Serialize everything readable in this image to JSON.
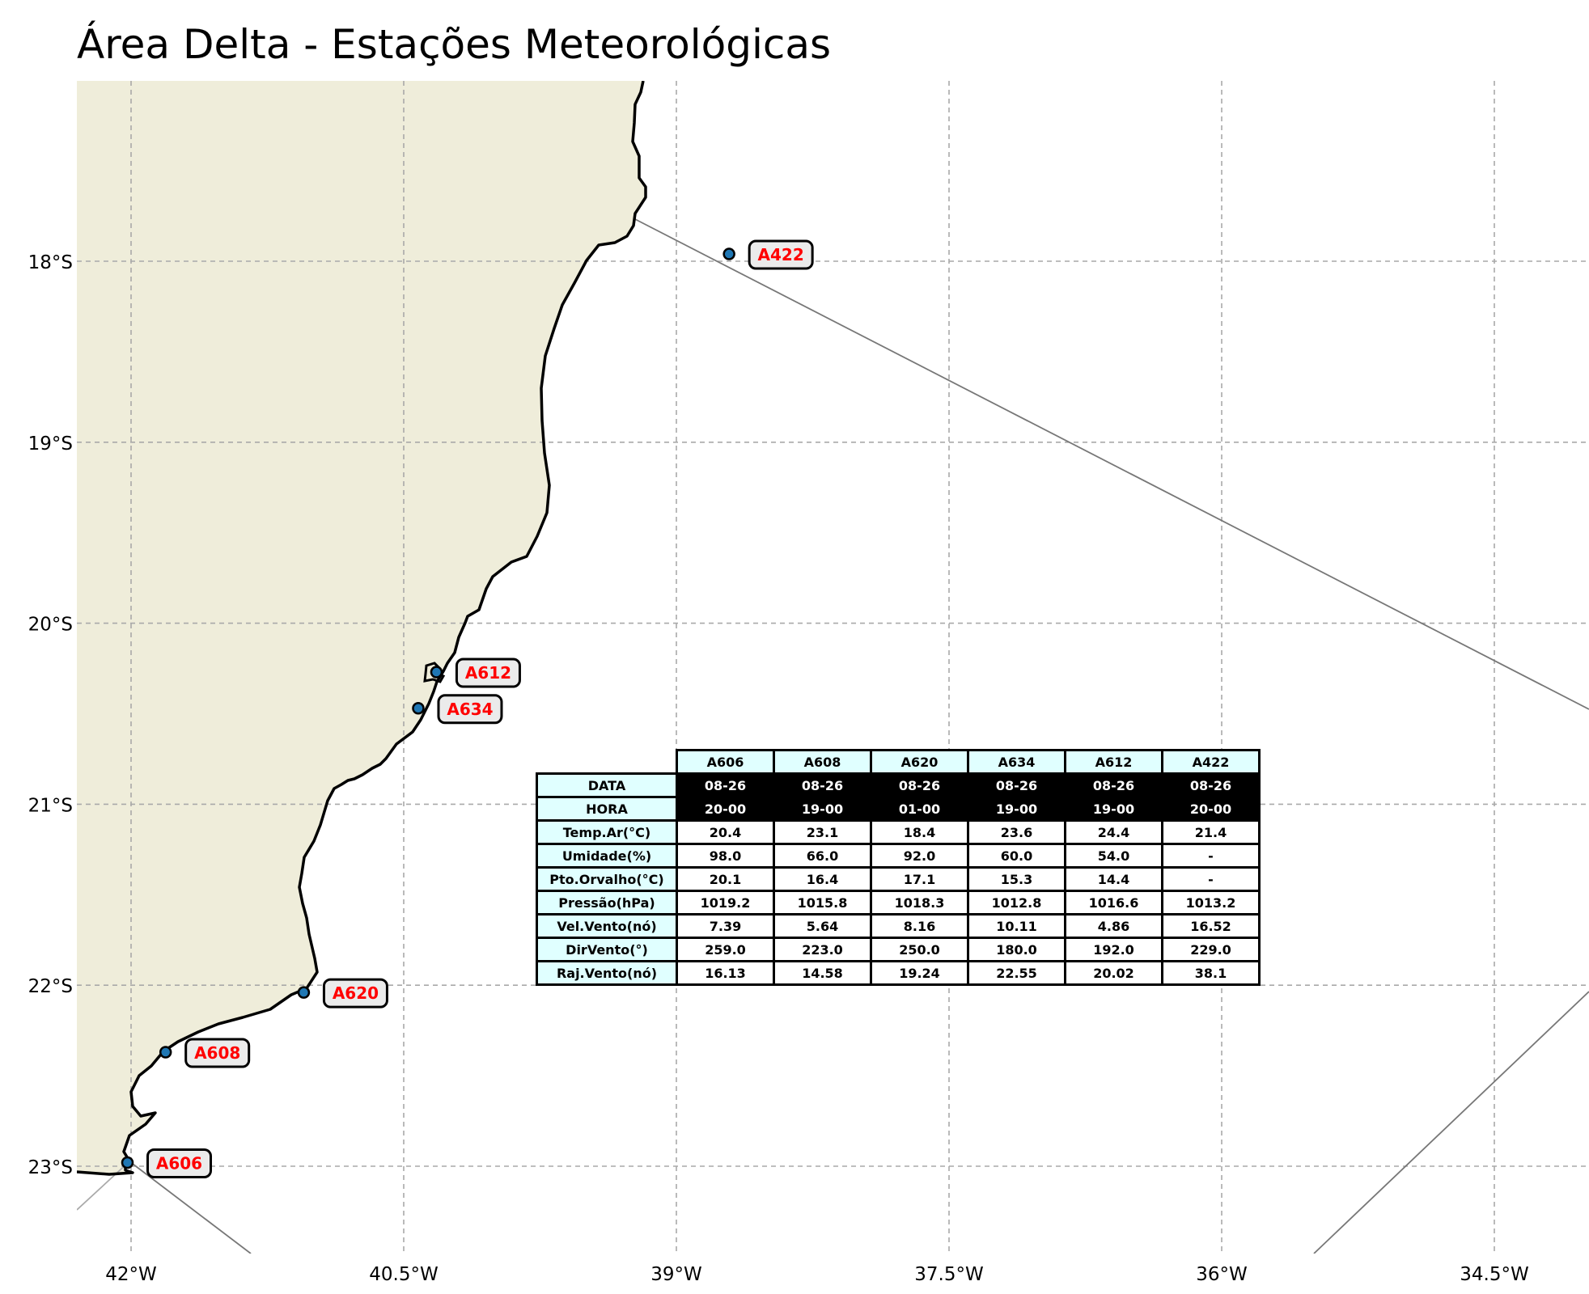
{
  "title": "Área Delta - Estações Meteorológicas",
  "colors": {
    "land": "#efedda",
    "station_marker": "#1f77b4",
    "label_text": "#ff0000",
    "label_box": "#ebebeb",
    "table_header_fill": "#e0ffff",
    "table_dark_fill": "#000000",
    "grid": "#a9a9a9"
  },
  "map": {
    "lon_range": [
      -42.3,
      -34.0
    ],
    "lat_range": [
      -23.5,
      -17.0
    ],
    "lon_ticks": [
      {
        "value": -42.0,
        "label": "42°W"
      },
      {
        "value": -40.5,
        "label": "40.5°W"
      },
      {
        "value": -39.0,
        "label": "39°W"
      },
      {
        "value": -37.5,
        "label": "37.5°W"
      },
      {
        "value": -36.0,
        "label": "36°W"
      },
      {
        "value": -34.5,
        "label": "34.5°W"
      }
    ],
    "lat_ticks": [
      {
        "value": -18.0,
        "label": "18°S"
      },
      {
        "value": -19.0,
        "label": "19°S"
      },
      {
        "value": -20.0,
        "label": "20°S"
      },
      {
        "value": -21.0,
        "label": "21°S"
      },
      {
        "value": -22.0,
        "label": "22°S"
      },
      {
        "value": -23.0,
        "label": "23°S"
      }
    ],
    "gridlines": "dashed",
    "stations": [
      {
        "id": "A422",
        "lon": -38.71,
        "lat": -17.96
      },
      {
        "id": "A612",
        "lon": -40.32,
        "lat": -20.27
      },
      {
        "id": "A634",
        "lon": -40.42,
        "lat": -20.47
      },
      {
        "id": "A620",
        "lon": -41.05,
        "lat": -22.04
      },
      {
        "id": "A608",
        "lon": -41.81,
        "lat": -22.37
      },
      {
        "id": "A606",
        "lon": -42.02,
        "lat": -22.98
      }
    ]
  },
  "table": {
    "columns": [
      "A606",
      "A608",
      "A620",
      "A634",
      "A612",
      "A422"
    ],
    "rows": [
      {
        "label": "DATA",
        "dark": true,
        "values": [
          "08-26",
          "08-26",
          "08-26",
          "08-26",
          "08-26",
          "08-26"
        ]
      },
      {
        "label": "HORA",
        "dark": true,
        "values": [
          "20-00",
          "19-00",
          "01-00",
          "19-00",
          "19-00",
          "20-00"
        ]
      },
      {
        "label": "Temp.Ar(°C)",
        "values": [
          "20.4",
          "23.1",
          "18.4",
          "23.6",
          "24.4",
          "21.4"
        ]
      },
      {
        "label": "Umidade(%)",
        "values": [
          "98.0",
          "66.0",
          "92.0",
          "60.0",
          "54.0",
          "-"
        ]
      },
      {
        "label": "Pto.Orvalho(°C)",
        "values": [
          "20.1",
          "16.4",
          "17.1",
          "15.3",
          "14.4",
          "-"
        ]
      },
      {
        "label": "Pressão(hPa)",
        "values": [
          "1019.2",
          "1015.8",
          "1018.3",
          "1012.8",
          "1016.6",
          "1013.2"
        ]
      },
      {
        "label": "Vel.Vento(nó)",
        "values": [
          "7.39",
          "5.64",
          "8.16",
          "10.11",
          "4.86",
          "16.52"
        ]
      },
      {
        "label": "DirVento(°)",
        "values": [
          "259.0",
          "223.0",
          "250.0",
          "180.0",
          "192.0",
          "229.0"
        ]
      },
      {
        "label": "Raj.Vento(nó)",
        "values": [
          "16.13",
          "14.58",
          "19.24",
          "22.55",
          "20.02",
          "38.1"
        ]
      }
    ]
  }
}
